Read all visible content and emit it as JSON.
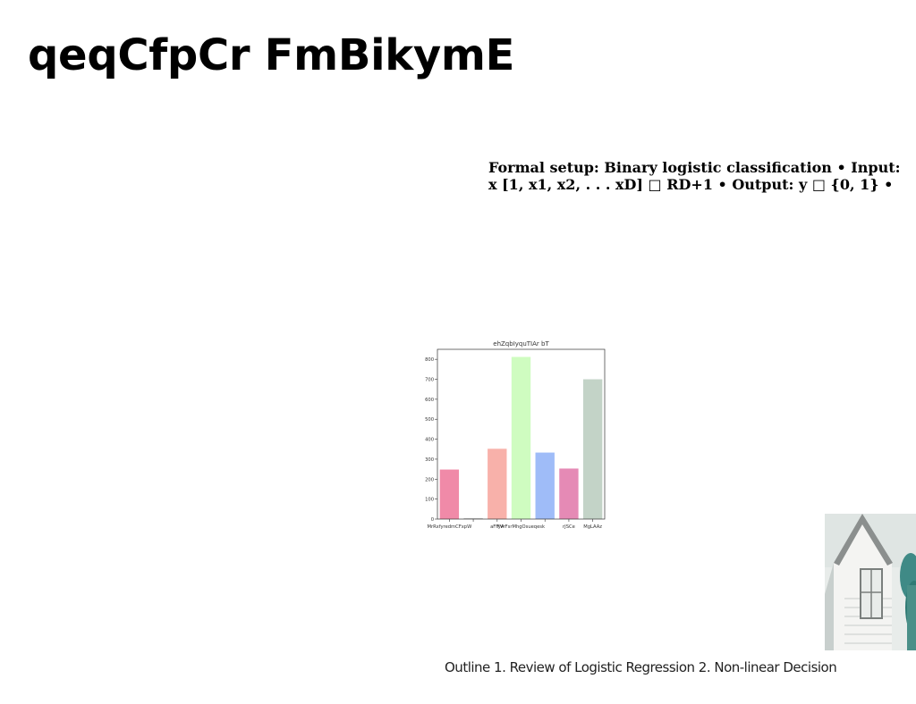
{
  "slide": {
    "title": "qeqCfpCr FmBikymE",
    "body_text": "Formal setup: Binary logistic classification • Input: x [1, x1, x2, . . . xD] □ RD+1 • Output: y □ {0, 1} •",
    "caption": "Outline 1. Review of Logistic Regression 2. Non-linear Decision"
  },
  "chart_data": {
    "type": "bar",
    "title": "ehZqbIyquTIAr bT",
    "categories": [
      "MrRxfyredmCFxpW",
      "",
      "aFFyA",
      "FVrFsrMhgOsueqesk",
      "",
      "rJSCe",
      "MgLAAz"
    ],
    "values": [
      248,
      5,
      352,
      812,
      333,
      253,
      700
    ],
    "colors": [
      "#f08aa8",
      "#c7c7c7",
      "#f8b1aa",
      "#cffcc0",
      "#9fbcf8",
      "#e58ab5",
      "#c3d3c7"
    ],
    "yticks": [
      0,
      100,
      200,
      300,
      400,
      500,
      600,
      700,
      800
    ],
    "ylim": [
      0,
      850
    ],
    "xlabel": "",
    "ylabel": "",
    "grid": false
  },
  "photo": {
    "icon": "house-photo"
  }
}
